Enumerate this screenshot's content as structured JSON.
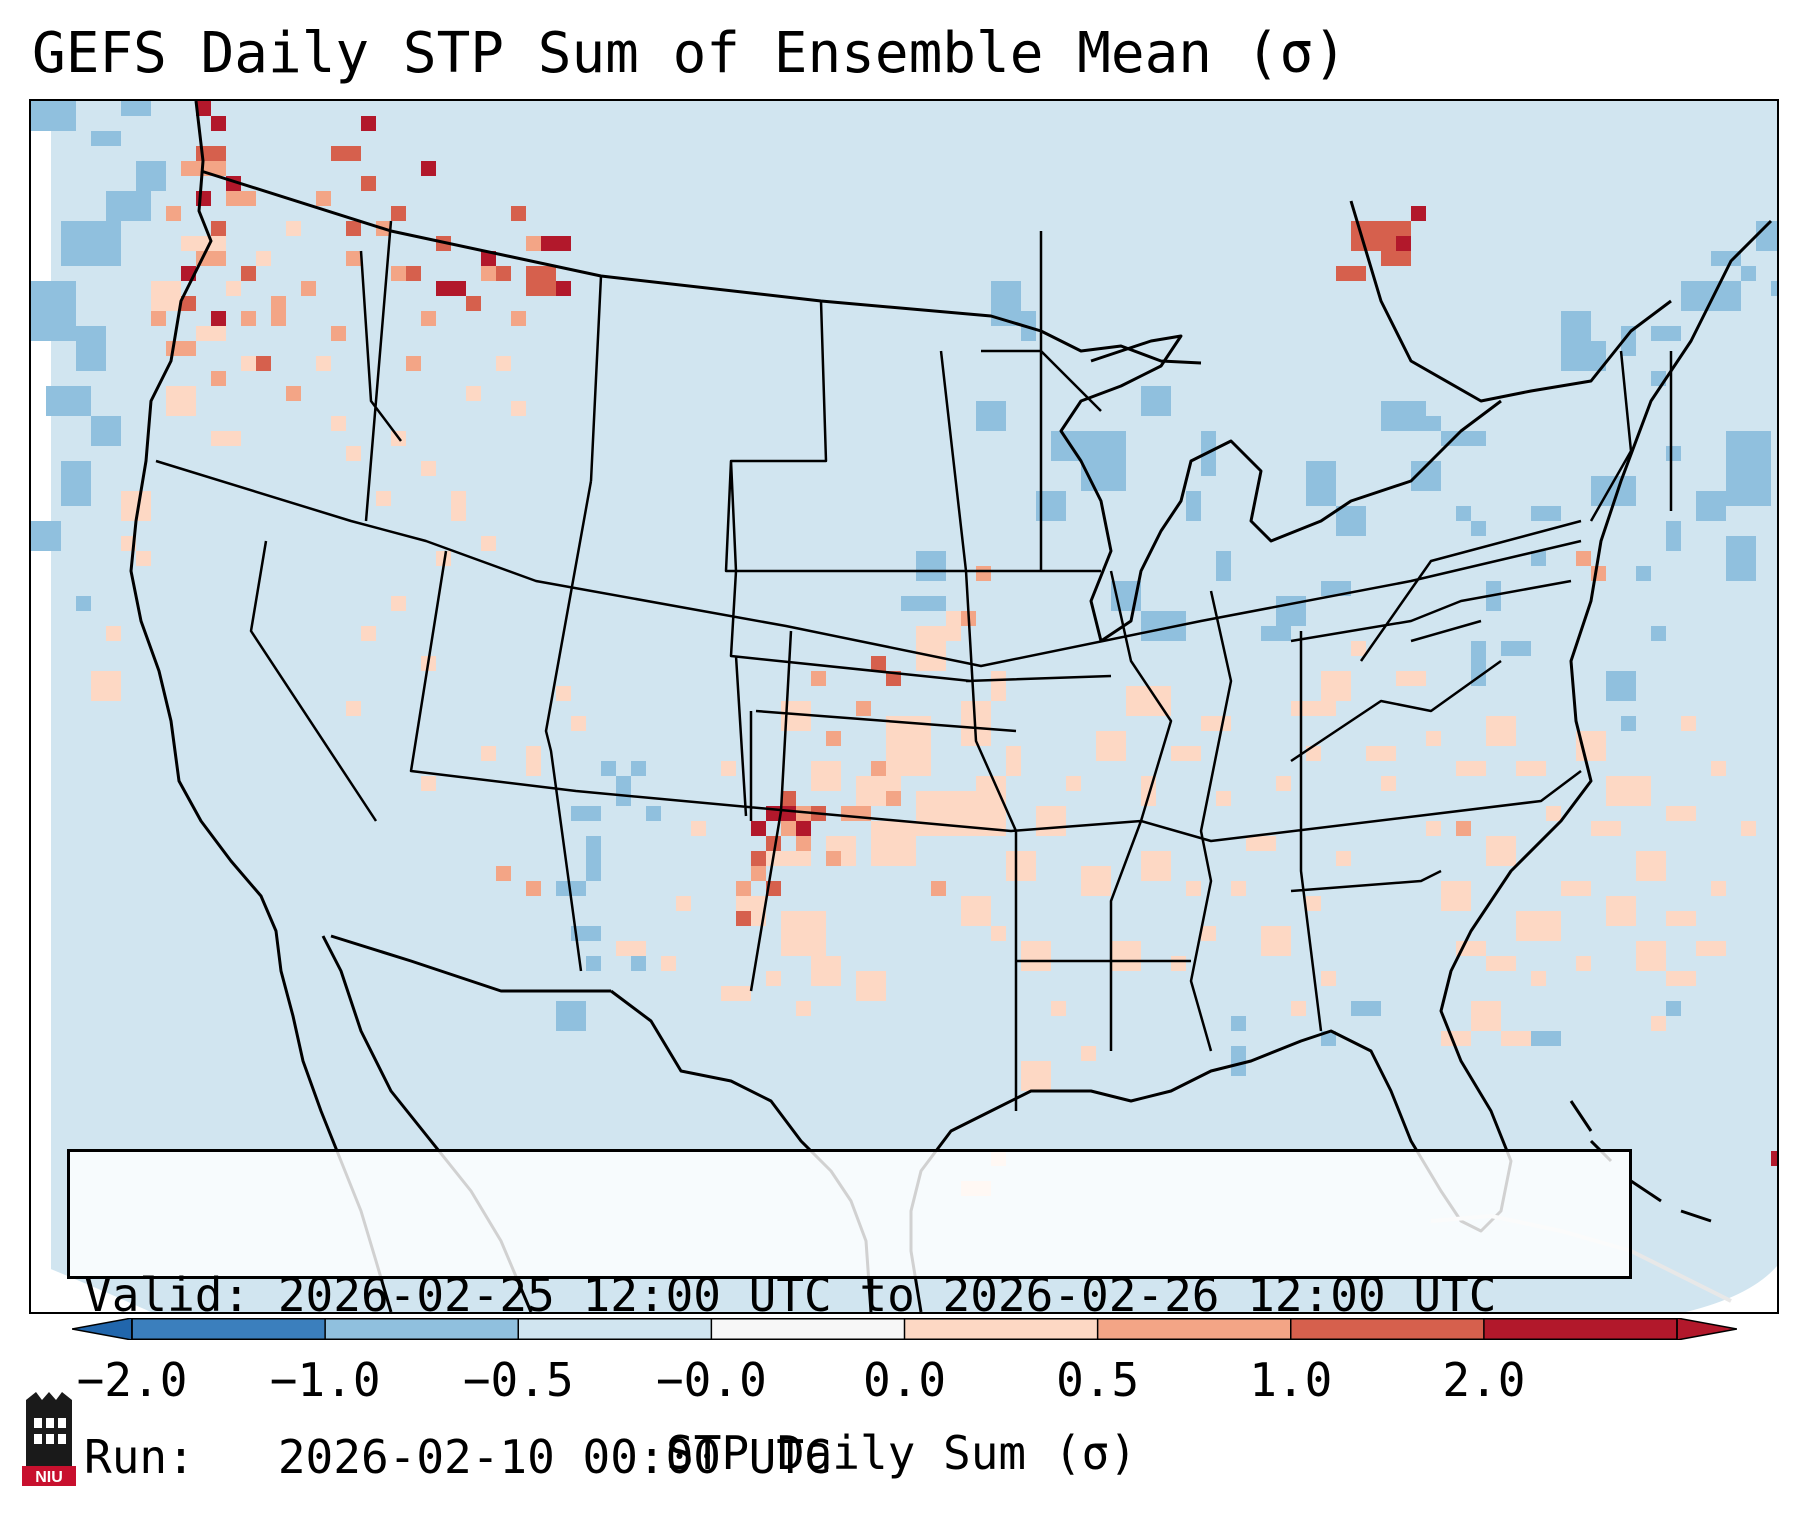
{
  "title": "GEFS Daily STP Sum of Ensemble Mean (σ)",
  "info": {
    "valid_line": "Valid: 2026-02-25 12:00 UTC to 2026-02-26 12:00 UTC",
    "run_line": "Run:   2026-02-10 00:00 UTC"
  },
  "colorbar": {
    "label": "STP Daily Sum (σ)",
    "ticks": [
      "−2.0",
      "−1.0",
      "−0.5",
      "−0.0",
      "0.0",
      "0.5",
      "1.0",
      "2.0"
    ],
    "colors": [
      "#3b7fbd",
      "#90c0de",
      "#d1e5f0",
      "#f7f7f7",
      "#fdd8c4",
      "#f3a586",
      "#d6604d",
      "#b2182b"
    ],
    "extend": "both"
  },
  "map": {
    "projection": "Lambert Conformal, CONUS",
    "background_color": "#d1e5f0",
    "field_classes": {
      "strong_negative": "#90c0de",
      "weak_positive": "#fdd8c4",
      "moderate_positive": "#f3a586",
      "high_positive": "#d6604d",
      "very_high_positive": "#b2182b"
    }
  },
  "logo": {
    "text": "NIU"
  }
}
